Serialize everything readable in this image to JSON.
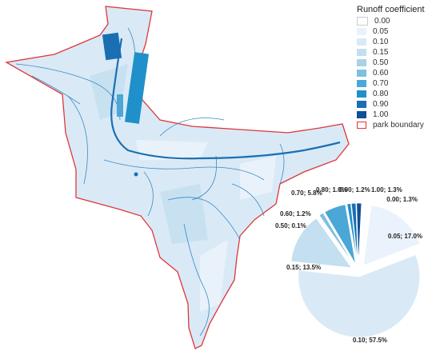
{
  "legend": {
    "title": "Runoff coefficient",
    "items": [
      {
        "label": "0.00",
        "color": "#ffffff"
      },
      {
        "label": "0.05",
        "color": "#eaf3fb"
      },
      {
        "label": "0.10",
        "color": "#d9eaf6"
      },
      {
        "label": "0.15",
        "color": "#c3dff0"
      },
      {
        "label": "0.50",
        "color": "#a8d2ea"
      },
      {
        "label": "0.60",
        "color": "#7ec0e0"
      },
      {
        "label": "0.70",
        "color": "#4aa7d6"
      },
      {
        "label": "0.80",
        "color": "#2090cb"
      },
      {
        "label": "0.90",
        "color": "#1a6fb3"
      },
      {
        "label": "1.00",
        "color": "#0f4f96"
      }
    ],
    "boundary_label": "park boundary",
    "boundary_color": "#e0353a"
  },
  "chart_data": {
    "type": "pie",
    "slices": [
      {
        "coef": "0.00",
        "percent": 1.3,
        "label": "0.00; 1.3%",
        "color": "#ffffff"
      },
      {
        "coef": "0.05",
        "percent": 17.0,
        "label": "0.05; 17.0%",
        "color": "#eaf3fb"
      },
      {
        "coef": "0.10",
        "percent": 57.5,
        "label": "0.10; 57.5%",
        "color": "#d9eaf6"
      },
      {
        "coef": "0.15",
        "percent": 13.5,
        "label": "0.15; 13.5%",
        "color": "#c3dff0"
      },
      {
        "coef": "0.50",
        "percent": 0.1,
        "label": "0.50; 0.1%",
        "color": "#a8d2ea"
      },
      {
        "coef": "0.60",
        "percent": 1.2,
        "label": "0.60; 1.2%",
        "color": "#7ec0e0"
      },
      {
        "coef": "0.70",
        "percent": 5.8,
        "label": "0.70; 5.8%",
        "color": "#4aa7d6"
      },
      {
        "coef": "0.80",
        "percent": 1.0,
        "label": "0.80; 1.0%",
        "color": "#2090cb"
      },
      {
        "coef": "0.90",
        "percent": 1.2,
        "label": "0.90; 1.2%",
        "color": "#1a6fb3"
      },
      {
        "coef": "1.00",
        "percent": 1.3,
        "label": "1.00; 1.3%",
        "color": "#0f4f96"
      }
    ]
  }
}
